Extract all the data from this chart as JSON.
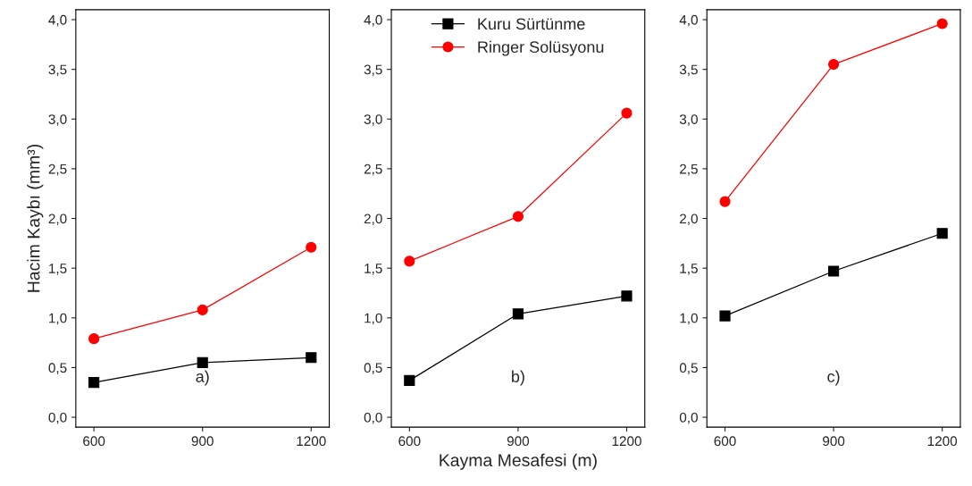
{
  "chart_data": [
    {
      "type": "line",
      "x": [
        600,
        900,
        1200
      ],
      "ylabel": "Hacim Kaybı (mm³)",
      "annotations": [
        "a)"
      ],
      "xlim": [
        550,
        1250
      ],
      "xticks": [
        600,
        900,
        1200
      ],
      "ylim": [
        -0.1,
        4.1
      ],
      "yticks": [
        {
          "value": 0,
          "label": "0,0"
        },
        {
          "value": 0.5,
          "label": "0,5"
        },
        {
          "value": 1,
          "label": "1,0"
        },
        {
          "value": 1.5,
          "label": "1,5"
        },
        {
          "value": 2,
          "label": "2,0"
        },
        {
          "value": 2.5,
          "label": "2,5"
        },
        {
          "value": 3,
          "label": "3,0"
        },
        {
          "value": 3.5,
          "label": "3,5"
        },
        {
          "value": 4,
          "label": "4,0"
        }
      ],
      "grid": false,
      "legend": false,
      "series": [
        {
          "color": "#000000",
          "marker": "square",
          "values": [
            0.35,
            0.55,
            0.6
          ]
        },
        {
          "color": "#ff0000",
          "marker": "circle",
          "values": [
            0.79,
            1.08,
            1.71
          ]
        }
      ]
    },
    {
      "type": "line",
      "x": [
        600,
        900,
        1200
      ],
      "xlabel": "Kayma Mesafesi (m)",
      "annotations": [
        "b)"
      ],
      "xlim": [
        550,
        1250
      ],
      "xticks": [
        600,
        900,
        1200
      ],
      "ylim": [
        -0.1,
        4.1
      ],
      "yticks": [
        {
          "value": 0,
          "label": "0,0"
        },
        {
          "value": 0.5,
          "label": "0,5"
        },
        {
          "value": 1,
          "label": "1,0"
        },
        {
          "value": 1.5,
          "label": "1,5"
        },
        {
          "value": 2,
          "label": "2,0"
        },
        {
          "value": 2.5,
          "label": "2,5"
        },
        {
          "value": 3,
          "label": "3,0"
        },
        {
          "value": 3.5,
          "label": "3,5"
        },
        {
          "value": 4,
          "label": "4,0"
        }
      ],
      "grid": false,
      "legend": "top",
      "series": [
        {
          "name": "Kuru Sürtünme",
          "color": "#000000",
          "marker": "square",
          "values": [
            0.37,
            1.04,
            1.22
          ]
        },
        {
          "name": "Ringer Solüsyonu",
          "color": "#ff0000",
          "marker": "circle",
          "values": [
            1.57,
            2.02,
            3.06
          ]
        }
      ]
    },
    {
      "type": "line",
      "x": [
        600,
        900,
        1200
      ],
      "annotations": [
        "c)"
      ],
      "xlim": [
        550,
        1250
      ],
      "xticks": [
        600,
        900,
        1200
      ],
      "ylim": [
        -0.1,
        4.1
      ],
      "yticks": [
        {
          "value": 0,
          "label": "0,0"
        },
        {
          "value": 0.5,
          "label": "0,5"
        },
        {
          "value": 1,
          "label": "1,0"
        },
        {
          "value": 1.5,
          "label": "1,5"
        },
        {
          "value": 2,
          "label": "2,0"
        },
        {
          "value": 2.5,
          "label": "2,5"
        },
        {
          "value": 3,
          "label": "3,0"
        },
        {
          "value": 3.5,
          "label": "3,5"
        },
        {
          "value": 4,
          "label": "4,0"
        }
      ],
      "grid": false,
      "legend": false,
      "series": [
        {
          "color": "#000000",
          "marker": "square",
          "values": [
            1.02,
            1.47,
            1.85
          ]
        },
        {
          "color": "#ff0000",
          "marker": "circle",
          "values": [
            2.17,
            3.55,
            3.96
          ]
        }
      ]
    }
  ]
}
